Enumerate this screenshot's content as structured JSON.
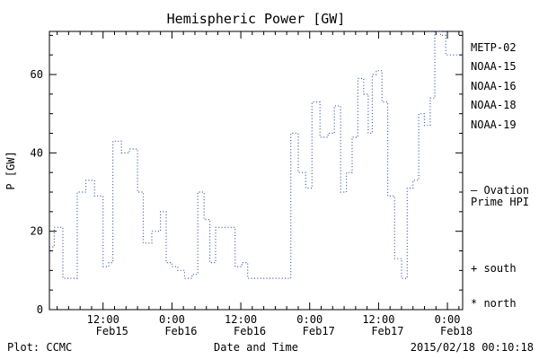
{
  "title": "Hemispheric Power [GW]",
  "ylabel": "P [GW]",
  "xlabel": "Date and Time",
  "footer": {
    "left": "Plot: CCMC",
    "right": "2015/02/18 00:10:18"
  },
  "legend": {
    "satellites": [
      {
        "label": "METP-02",
        "color": "#000000"
      },
      {
        "label": "NOAA-15",
        "color": "#2233cc"
      },
      {
        "label": "NOAA-16",
        "color": "#00b8c8"
      },
      {
        "label": "NOAA-18",
        "color": "#66cc77"
      },
      {
        "label": "NOAA-19",
        "color": "#ee9944"
      }
    ],
    "ovation_line1": "— Ovation",
    "ovation_line2": "Prime HPI",
    "ovation_color": "#2244cc",
    "south": "+ south",
    "north": "* north"
  },
  "chart_data": {
    "type": "line",
    "style": "dotted-step",
    "title": "Hemispheric Power [GW]",
    "xlabel": "Date and Time",
    "ylabel": "P [GW]",
    "line_color": "#3a50c8",
    "xlim_hours": [
      2.65,
      74.65
    ],
    "ylim": [
      0,
      71
    ],
    "yticks": [
      0,
      20,
      40,
      60
    ],
    "xticks": [
      {
        "hours": 12,
        "time": "12:00",
        "date": "Feb15"
      },
      {
        "hours": 24,
        "time": "0:00",
        "date": "Feb16"
      },
      {
        "hours": 36,
        "time": "12:00",
        "date": "Feb16"
      },
      {
        "hours": 48,
        "time": "0:00",
        "date": "Feb17"
      },
      {
        "hours": 60,
        "time": "12:00",
        "date": "Feb17"
      },
      {
        "hours": 72,
        "time": "0:00",
        "date": "Feb18"
      }
    ],
    "t": [
      2.65,
      3.5,
      5.0,
      6.5,
      7.5,
      9.0,
      10.5,
      12.0,
      13.0,
      13.7,
      15.2,
      16.6,
      18.0,
      19.0,
      20.5,
      22.0,
      23.0,
      24.0,
      25.0,
      26.2,
      27.5,
      28.5,
      29.6,
      30.6,
      31.6,
      33.4,
      35.0,
      36.2,
      37.2,
      38.6,
      40.0,
      41.5,
      43.0,
      44.7,
      46.0,
      47.3,
      48.4,
      49.8,
      51.2,
      52.3,
      53.4,
      54.4,
      55.4,
      56.4,
      57.4,
      58.2,
      58.9,
      59.6,
      60.6,
      61.6,
      62.8,
      64.0,
      65.0,
      66.0,
      67.0,
      68.0,
      69.0,
      69.8,
      70.8,
      71.7
    ],
    "p": [
      16,
      21,
      8,
      8,
      30,
      33,
      29,
      11,
      12,
      43,
      40,
      41,
      30,
      17,
      20,
      25,
      12,
      11,
      10,
      8,
      9,
      30,
      23,
      12,
      21,
      21,
      11,
      12,
      8,
      8,
      8,
      8,
      8,
      45,
      35,
      31,
      53,
      44,
      45,
      52,
      30,
      35,
      44,
      59,
      55,
      45,
      60,
      61,
      53,
      29,
      13,
      8,
      31,
      33,
      50,
      47,
      54,
      71,
      70,
      65
    ],
    "t_end": 74.65,
    "units": "GW",
    "x_units": "hours since 2015-02-15 00:00"
  }
}
